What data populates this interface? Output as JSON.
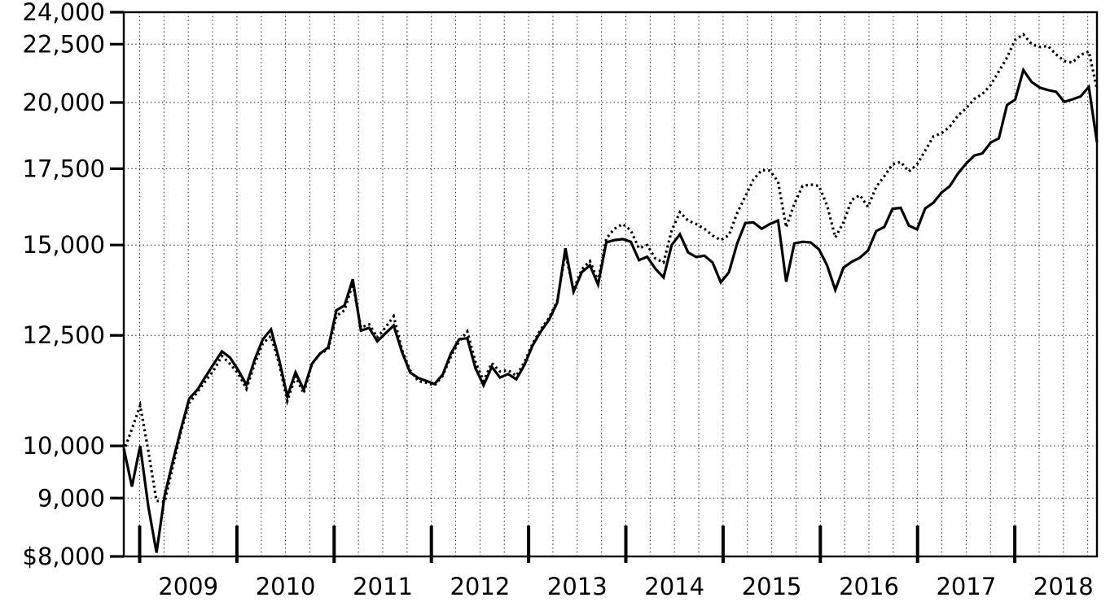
{
  "chart_data": {
    "type": "line",
    "title": "",
    "xlabel": "",
    "ylabel": "",
    "y_scale": "log",
    "y_min": 8000,
    "y_max": 24000,
    "grid": true,
    "x_unit": "month",
    "y_ticks": [
      {
        "value": 24000,
        "label": "24,000"
      },
      {
        "value": 22500,
        "label": "22,500"
      },
      {
        "value": 20000,
        "label": "20,000"
      },
      {
        "value": 17500,
        "label": "17,500"
      },
      {
        "value": 15000,
        "label": "15,000"
      },
      {
        "value": 12500,
        "label": "12,500"
      },
      {
        "value": 10000,
        "label": "10,000"
      },
      {
        "value": 9000,
        "label": "9,000"
      },
      {
        "value": 8000,
        "label": "$8,000"
      }
    ],
    "x_year_labels": [
      "2009",
      "2010",
      "2011",
      "2012",
      "2013",
      "2014",
      "2015",
      "2016",
      "2017",
      "2018"
    ],
    "series": [
      {
        "name": "dotted-series",
        "style": "dotted",
        "color": "#000000",
        "values": [
          9890,
          10350,
          10850,
          9900,
          8950,
          8930,
          9600,
          10300,
          10900,
          11150,
          11400,
          11650,
          11990,
          11800,
          11570,
          11220,
          11800,
          12300,
          12480,
          11800,
          10950,
          11500,
          11120,
          11800,
          12050,
          12150,
          13000,
          13150,
          13880,
          12700,
          12780,
          12450,
          12700,
          12990,
          12150,
          11650,
          11400,
          11360,
          11300,
          11520,
          11980,
          12350,
          12600,
          11850,
          11400,
          11820,
          11620,
          11650,
          11520,
          11850,
          12300,
          12650,
          12950,
          13400,
          14750,
          13700,
          14280,
          14520,
          13950,
          15200,
          15500,
          15650,
          15450,
          14900,
          15000,
          14600,
          14480,
          15450,
          16030,
          15760,
          15650,
          15500,
          15290,
          15150,
          15300,
          16000,
          16550,
          17120,
          17450,
          17430,
          17050,
          15550,
          16300,
          16900,
          16950,
          16900,
          16250,
          15230,
          15700,
          16430,
          16590,
          16200,
          16870,
          17240,
          17650,
          17740,
          17400,
          17650,
          18150,
          18680,
          18800,
          19050,
          19480,
          19770,
          20150,
          20350,
          20720,
          21300,
          21900,
          22700,
          22950,
          22500,
          22370,
          22420,
          22040,
          21750,
          21680,
          22020,
          22170,
          20550
        ]
      },
      {
        "name": "solid-series",
        "style": "solid",
        "color": "#000000",
        "values": [
          9950,
          9210,
          10000,
          8850,
          8060,
          9050,
          9700,
          10350,
          11000,
          11200,
          11500,
          11800,
          12100,
          11950,
          11650,
          11310,
          11900,
          12400,
          12650,
          11900,
          11050,
          11600,
          11200,
          11800,
          12050,
          12200,
          13150,
          13280,
          14000,
          12620,
          12690,
          12350,
          12550,
          12750,
          12100,
          11600,
          11470,
          11400,
          11330,
          11550,
          12050,
          12400,
          12430,
          11700,
          11300,
          11730,
          11480,
          11560,
          11440,
          11780,
          12250,
          12600,
          12900,
          13350,
          14900,
          13650,
          14200,
          14400,
          13850,
          15080,
          15150,
          15180,
          15100,
          14550,
          14650,
          14300,
          14050,
          15000,
          15330,
          14780,
          14640,
          14680,
          14480,
          13910,
          14200,
          15050,
          15680,
          15700,
          15500,
          15650,
          15760,
          13930,
          15050,
          15100,
          15080,
          14870,
          14400,
          13700,
          14330,
          14500,
          14620,
          14830,
          15430,
          15560,
          16140,
          16170,
          15600,
          15480,
          16150,
          16340,
          16680,
          16890,
          17330,
          17680,
          17970,
          18050,
          18450,
          18600,
          19900,
          20120,
          21350,
          20850,
          20610,
          20510,
          20440,
          20030,
          20130,
          20250,
          20640,
          18450
        ]
      }
    ]
  }
}
